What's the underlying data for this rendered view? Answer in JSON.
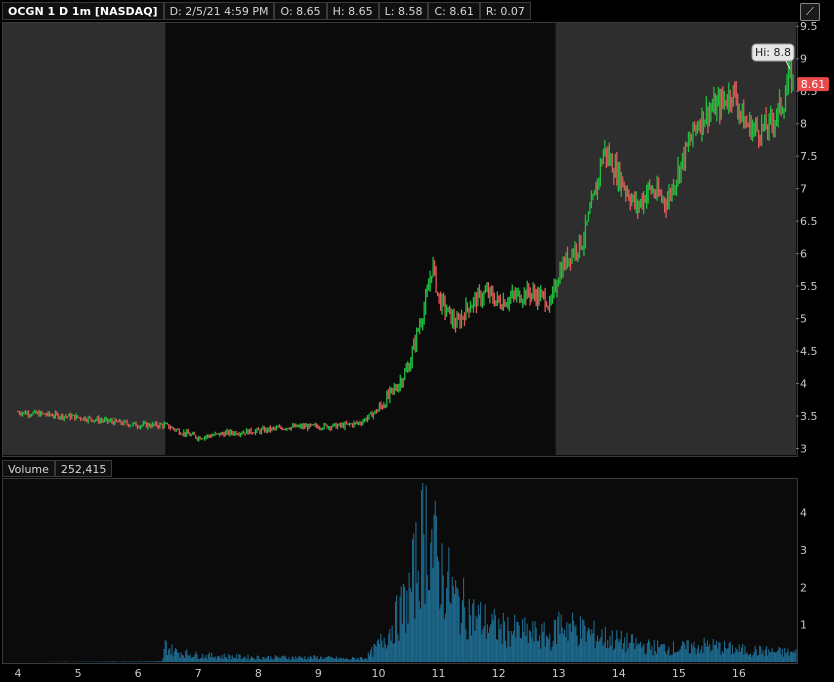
{
  "header": {
    "symbol": "OCGN 1 D 1m [NASDAQ]",
    "date": "D: 2/5/21 4:59 PM",
    "open": "O: 8.65",
    "high": "H: 8.65",
    "low": "L: 8.58",
    "close": "C: 8.61",
    "range": "R: 0.07"
  },
  "volume_header": {
    "label": "Volume",
    "value": "252,415"
  },
  "zoom_icon": "zoom-toggle-icon",
  "colors": {
    "up": "#1fbf3f",
    "down": "#e05a5a",
    "volume": "#1e6a8e",
    "extended_hours_bg": "#2e2e2e",
    "regular_hours_bg": "#0b0b0b",
    "last_price_bg": "#e84a4a"
  },
  "chart_data": [
    {
      "type": "line",
      "name": "price",
      "x_ticks": [
        "4",
        "5",
        "6",
        "7",
        "8",
        "9",
        "10",
        "11",
        "12",
        "13",
        "14",
        "15",
        "16"
      ],
      "x": [
        4.0,
        4.5,
        5.0,
        5.5,
        6.0,
        6.45,
        6.7,
        7.0,
        7.5,
        8.0,
        8.5,
        9.0,
        9.4,
        9.7,
        10.0,
        10.3,
        10.5,
        10.65,
        10.8,
        10.9,
        11.0,
        11.3,
        11.5,
        11.8,
        12.0,
        12.3,
        12.5,
        12.8,
        12.85,
        13.0,
        13.2,
        13.4,
        13.6,
        13.75,
        14.0,
        14.3,
        14.5,
        14.8,
        15.0,
        15.3,
        15.5,
        15.7,
        15.9,
        16.1,
        16.3,
        16.5,
        16.75,
        16.85,
        16.9
      ],
      "y": [
        3.56,
        3.52,
        3.48,
        3.42,
        3.36,
        3.36,
        3.26,
        3.17,
        3.24,
        3.27,
        3.33,
        3.34,
        3.35,
        3.4,
        3.6,
        3.95,
        4.25,
        4.8,
        5.3,
        5.85,
        5.3,
        4.9,
        5.2,
        5.4,
        5.25,
        5.35,
        5.4,
        5.3,
        5.15,
        5.7,
        6.0,
        6.2,
        6.9,
        7.6,
        7.2,
        6.7,
        7.0,
        6.8,
        7.3,
        8.0,
        8.2,
        8.3,
        8.5,
        8.0,
        7.9,
        7.95,
        8.35,
        8.8,
        8.61
      ],
      "y_ticks": [
        3,
        3.5,
        4,
        4.5,
        5,
        5.5,
        6,
        6.5,
        7,
        7.5,
        8,
        8.5,
        9,
        9.5
      ],
      "ylim": [
        2.9,
        9.55
      ],
      "xlim": [
        3.75,
        16.95
      ],
      "regular_session": [
        6.45,
        12.95
      ],
      "high_label": "Hi: 8.8",
      "high_value": 8.8,
      "high_x": 16.85,
      "last_price_label": "8.61",
      "last_price": 8.61
    },
    {
      "type": "bar",
      "name": "volume",
      "y_ticks": [
        1,
        2,
        3,
        4
      ],
      "ylim": [
        0,
        4.9
      ],
      "xlim": [
        3.75,
        16.95
      ],
      "profile_x": [
        3.75,
        6.4,
        6.45,
        6.6,
        7.0,
        8.0,
        9.0,
        9.5,
        9.8,
        10.0,
        10.2,
        10.5,
        10.7,
        10.8,
        11.0,
        11.3,
        11.6,
        12.0,
        12.5,
        12.9,
        13.0,
        13.5,
        14.0,
        14.5,
        15.0,
        15.5,
        16.0,
        16.5,
        16.95
      ],
      "profile_y": [
        0.0,
        0.02,
        0.55,
        0.35,
        0.22,
        0.15,
        0.15,
        0.1,
        0.15,
        0.55,
        1.1,
        2.1,
        3.8,
        4.5,
        3.2,
        2.0,
        1.5,
        1.1,
        0.95,
        0.8,
        1.3,
        0.95,
        0.7,
        0.5,
        0.45,
        0.55,
        0.4,
        0.35,
        0.3
      ]
    }
  ]
}
